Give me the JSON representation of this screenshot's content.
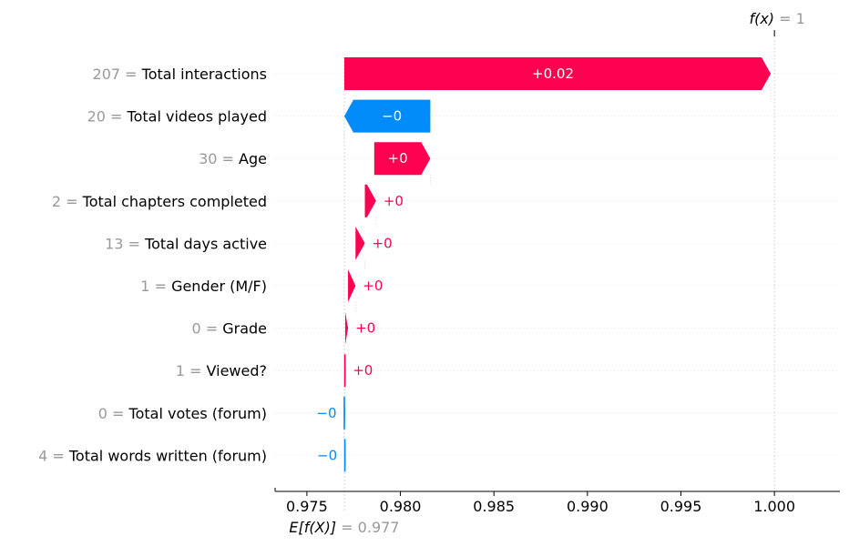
{
  "chart_data": {
    "type": "waterfall",
    "base_value": 0.977,
    "output_value": 1,
    "base_label_func": "E[f(X)]",
    "base_label_value": "0.977",
    "output_label_func": "f(x)",
    "output_label_value": "1",
    "xlim": [
      0.9733,
      1.0035
    ],
    "x_ticks": [
      "0.975",
      "0.980",
      "0.985",
      "0.990",
      "0.995",
      "1.000"
    ],
    "x_tick_values": [
      0.975,
      0.98,
      0.985,
      0.99,
      0.995,
      1.0
    ],
    "features": [
      {
        "value": "207",
        "name": "Total interactions",
        "start": 0.977,
        "end": 0.9998,
        "label": "+0.02"
      },
      {
        "value": "20",
        "name": "Total videos played",
        "start": 0.9816,
        "end": 0.977,
        "label": "−0"
      },
      {
        "value": "30",
        "name": "Age",
        "start": 0.9786,
        "end": 0.9816,
        "label": "+0"
      },
      {
        "value": "2",
        "name": "Total chapters completed",
        "start": 0.9781,
        "end": 0.9787,
        "label": "+0"
      },
      {
        "value": "13",
        "name": "Total days active",
        "start": 0.9776,
        "end": 0.9781,
        "label": "+0"
      },
      {
        "value": "1",
        "name": "Gender (M/F)",
        "start": 0.9772,
        "end": 0.9776,
        "label": "+0"
      },
      {
        "value": "0",
        "name": "Grade",
        "start": 0.97705,
        "end": 0.9772,
        "label": "+0"
      },
      {
        "value": "1",
        "name": "Viewed?",
        "start": 0.977,
        "end": 0.97706,
        "label": "+0"
      },
      {
        "value": "0",
        "name": "Total votes (forum)",
        "start": 0.97702,
        "end": 0.97698,
        "label": "−0"
      },
      {
        "value": "4",
        "name": "Total words written (forum)",
        "start": 0.97705,
        "end": 0.97701,
        "label": "−0"
      }
    ],
    "colors": {
      "positive": "#ff0051",
      "negative": "#008bfb",
      "axis": "#000000",
      "muted": "#999999",
      "grid": "#cccccc"
    }
  }
}
